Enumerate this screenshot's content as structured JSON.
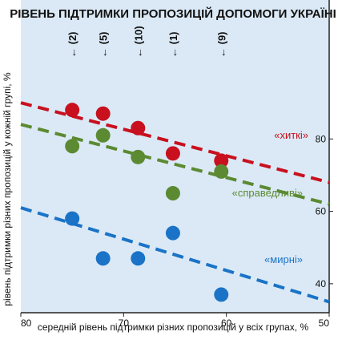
{
  "chart_data": {
    "type": "scatter",
    "title": "РІВЕНЬ ПІДТРИМКИ ПРОПОЗИЦІЙ ДОПОМОГИ УКРАЇНІ",
    "xlabel": "середній рівень підтримки різних пропозицій у всіх групах, %",
    "ylabel": "рівень підтримки різних пропозицій у кожній групі, %",
    "x_reversed": true,
    "xlim": [
      80,
      50
    ],
    "ylim": [
      32,
      100
    ],
    "x_ticks": [
      "80",
      "70",
      "60",
      "50"
    ],
    "y_ticks": [
      "40",
      "60",
      "80"
    ],
    "grid": false,
    "background_color": "#dbe9f6",
    "arrow_labels": [
      {
        "x": 75,
        "text": "(2)"
      },
      {
        "x": 72,
        "text": "(5)"
      },
      {
        "x": 68.6,
        "text": "(10)"
      },
      {
        "x": 65.2,
        "text": "(1)"
      },
      {
        "x": 60.5,
        "text": "(9)"
      }
    ],
    "series": [
      {
        "name": "«хиткі»",
        "color": "#c8101e",
        "x": [
          75,
          72,
          68.6,
          65.2,
          60.5
        ],
        "y": [
          88,
          87,
          83,
          76,
          74
        ],
        "trend": [
          [
            80,
            90
          ],
          [
            50,
            68
          ]
        ]
      },
      {
        "name": "«справедливі»",
        "color": "#5b8a32",
        "x": [
          75,
          72,
          68.6,
          65.2,
          60.5
        ],
        "y": [
          78,
          81,
          75,
          65,
          71
        ],
        "trend": [
          [
            80,
            84
          ],
          [
            50,
            62
          ]
        ]
      },
      {
        "name": "«мирні»",
        "color": "#1a73c6",
        "x": [
          75,
          72,
          68.6,
          65.2,
          60.5
        ],
        "y": [
          58,
          47,
          47,
          54,
          37
        ],
        "trend": [
          [
            80,
            61
          ],
          [
            50,
            35
          ]
        ]
      }
    ]
  }
}
